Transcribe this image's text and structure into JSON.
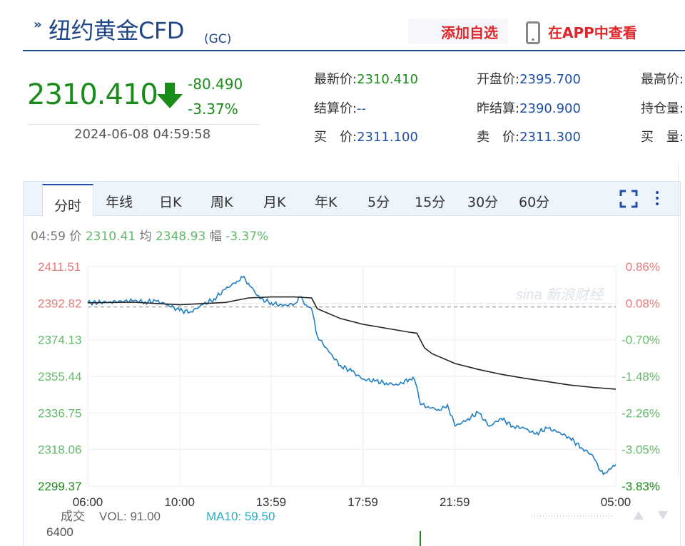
{
  "header": {
    "title": "纽约黄金CFD",
    "code": "(GC)",
    "add_watchlist": "添加自选",
    "view_in_app": "在APP中查看"
  },
  "quote": {
    "price": "2310.410",
    "change": "-80.490",
    "change_pct": "-3.37%",
    "time": "2024-06-08 04:59:58",
    "fields": [
      {
        "label": "最新价:",
        "value": "2310.410",
        "style": "vg"
      },
      {
        "label": "开盘价:",
        "value": "2395.700",
        "style": "v"
      },
      {
        "label": "最高价:",
        "value": "",
        "style": "v"
      },
      {
        "label": "结算价:",
        "value": "--",
        "style": "v"
      },
      {
        "label": "昨结算:",
        "value": "2390.900",
        "style": "v"
      },
      {
        "label": "持仓量:",
        "value": "",
        "style": "v"
      },
      {
        "label": "买　价:",
        "value": "2311.100",
        "style": "v"
      },
      {
        "label": "卖　价:",
        "value": "2311.300",
        "style": "v"
      },
      {
        "label": "买　量:",
        "value": "",
        "style": "v"
      }
    ]
  },
  "tabs": [
    "分时",
    "年线",
    "日K",
    "周K",
    "月K",
    "年K",
    "5分",
    "15分",
    "30分",
    "60分"
  ],
  "active_tab": "分时",
  "infoline": {
    "time": "04:59",
    "price_label": "价",
    "price": "2310.41",
    "avg_label": "均",
    "avg": "2348.93",
    "amp_label": "幅",
    "amp": "-3.37%"
  },
  "watermark": "sina 新浪财经",
  "volume": {
    "label": "成交",
    "vol_text": "VOL: 91.00",
    "ma_text": "MA10: 59.50",
    "max_tick": "6400"
  },
  "chart_data": {
    "type": "line",
    "y_ticks_left": [
      "2411.51",
      "2392.82",
      "2374.13",
      "2355.44",
      "2336.75",
      "2318.06",
      "2299.37"
    ],
    "y_ticks_right": [
      "0.86%",
      "0.08%",
      "-0.70%",
      "-1.48%",
      "-2.26%",
      "-3.05%",
      "-3.83%"
    ],
    "x_ticks": [
      "06:00",
      "10:00",
      "13:59",
      "17:59",
      "21:59",
      "05:00"
    ],
    "ylim": [
      2299.37,
      2411.51
    ],
    "prev_settle": 2390.9,
    "series": [
      {
        "name": "价",
        "color": "#1f7fc6",
        "points": [
          [
            "06:00",
            2393.0
          ],
          [
            "07:00",
            2393.5
          ],
          [
            "08:00",
            2394.0
          ],
          [
            "08:30",
            2393.5
          ],
          [
            "09:00",
            2393.8
          ],
          [
            "09:30",
            2392.0
          ],
          [
            "10:00",
            2389.0
          ],
          [
            "10:30",
            2388.5
          ],
          [
            "11:00",
            2392.0
          ],
          [
            "11:30",
            2395.0
          ],
          [
            "12:00",
            2400.0
          ],
          [
            "12:30",
            2404.0
          ],
          [
            "12:45",
            2406.0
          ],
          [
            "13:00",
            2403.0
          ],
          [
            "13:30",
            2395.0
          ],
          [
            "14:00",
            2393.0
          ],
          [
            "14:30",
            2391.5
          ],
          [
            "15:00",
            2392.5
          ],
          [
            "15:15",
            2396.0
          ],
          [
            "15:30",
            2392.0
          ],
          [
            "15:45",
            2390.0
          ],
          [
            "16:00",
            2376.0
          ],
          [
            "16:30",
            2368.0
          ],
          [
            "17:00",
            2361.0
          ],
          [
            "17:30",
            2358.0
          ],
          [
            "18:00",
            2354.0
          ],
          [
            "18:30",
            2353.0
          ],
          [
            "19:00",
            2352.0
          ],
          [
            "19:30",
            2351.0
          ],
          [
            "20:00",
            2354.0
          ],
          [
            "20:10",
            2355.0
          ],
          [
            "20:20",
            2350.0
          ],
          [
            "20:30",
            2341.0
          ],
          [
            "20:50",
            2340.0
          ],
          [
            "21:20",
            2338.0
          ],
          [
            "21:40",
            2341.0
          ],
          [
            "22:00",
            2330.0
          ],
          [
            "22:30",
            2333.0
          ],
          [
            "23:00",
            2337.0
          ],
          [
            "23:30",
            2330.0
          ],
          [
            "00:00",
            2334.0
          ],
          [
            "00:30",
            2330.0
          ],
          [
            "01:00",
            2329.0
          ],
          [
            "01:30",
            2326.0
          ],
          [
            "02:00",
            2329.0
          ],
          [
            "02:30",
            2327.0
          ],
          [
            "03:00",
            2324.0
          ],
          [
            "03:30",
            2319.0
          ],
          [
            "04:00",
            2315.0
          ],
          [
            "04:20",
            2307.0
          ],
          [
            "04:35",
            2306.0
          ],
          [
            "04:50",
            2309.0
          ],
          [
            "05:00",
            2310.41
          ]
        ]
      },
      {
        "name": "均",
        "color": "#222222",
        "points": [
          [
            "06:00",
            2393.0
          ],
          [
            "08:00",
            2393.3
          ],
          [
            "10:00",
            2392.0
          ],
          [
            "12:00",
            2393.2
          ],
          [
            "13:00",
            2395.5
          ],
          [
            "14:00",
            2396.0
          ],
          [
            "15:00",
            2396.0
          ],
          [
            "15:45",
            2395.5
          ],
          [
            "16:00",
            2390.0
          ],
          [
            "17:00",
            2385.0
          ],
          [
            "18:00",
            2382.0
          ],
          [
            "19:00",
            2380.0
          ],
          [
            "20:00",
            2378.0
          ],
          [
            "20:20",
            2377.5
          ],
          [
            "20:40",
            2370.0
          ],
          [
            "21:00",
            2367.0
          ],
          [
            "22:00",
            2362.0
          ],
          [
            "23:00",
            2359.0
          ],
          [
            "00:00",
            2356.5
          ],
          [
            "01:00",
            2354.5
          ],
          [
            "02:00",
            2352.8
          ],
          [
            "03:00",
            2351.0
          ],
          [
            "04:00",
            2349.8
          ],
          [
            "05:00",
            2348.93
          ]
        ]
      }
    ]
  }
}
